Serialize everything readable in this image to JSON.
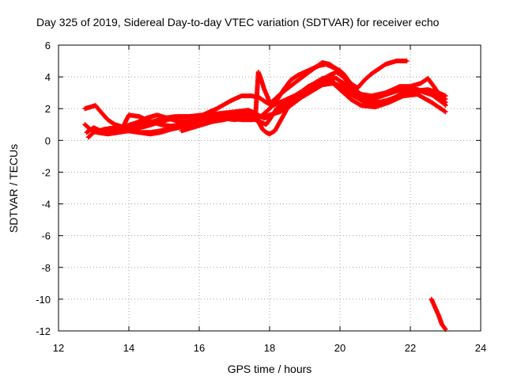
{
  "chart_data": {
    "type": "scatter",
    "title": "Day 325 of 2019, Sidereal Day-to-day VTEC variation (SDTVAR) for receiver echo",
    "xlabel": "GPS time / hours",
    "ylabel": "SDTVAR / TECUs",
    "xlim": [
      12,
      24
    ],
    "ylim": [
      -12,
      6
    ],
    "xticks": [
      12,
      14,
      16,
      18,
      20,
      22,
      24
    ],
    "yticks": [
      -12,
      -10,
      -8,
      -6,
      -4,
      -2,
      0,
      2,
      4,
      6
    ],
    "xtick_labels": [
      "12",
      "14",
      "16",
      "18",
      "20",
      "22",
      "24"
    ],
    "ytick_labels": [
      "-12",
      "-10",
      "-8",
      "-6",
      "-4",
      "-2",
      "0",
      "2",
      "4",
      "6"
    ],
    "grid": true,
    "legend": "none",
    "marker": "+",
    "color": "#ff0000",
    "series": [
      {
        "name": "track-1",
        "points": [
          [
            12.75,
            2.0
          ],
          [
            12.9,
            2.1
          ],
          [
            13.05,
            2.2
          ],
          [
            13.2,
            1.8
          ],
          [
            13.4,
            1.3
          ],
          [
            13.6,
            1.0
          ],
          [
            13.9,
            0.8
          ],
          [
            14.2,
            0.75
          ],
          [
            14.5,
            0.9
          ],
          [
            14.8,
            1.1
          ],
          [
            15.1,
            1.3
          ],
          [
            15.4,
            1.5
          ],
          [
            15.8,
            1.5
          ],
          [
            16.2,
            1.6
          ],
          [
            16.6,
            1.7
          ],
          [
            17.0,
            1.8
          ],
          [
            17.4,
            1.9
          ],
          [
            17.6,
            1.7
          ],
          [
            17.75,
            1.5
          ],
          [
            17.85,
            1.4
          ],
          [
            18.0,
            1.5
          ],
          [
            18.3,
            2.0
          ],
          [
            18.6,
            2.5
          ],
          [
            18.9,
            3.0
          ],
          [
            19.2,
            3.5
          ],
          [
            19.5,
            3.9
          ],
          [
            19.7,
            4.0
          ],
          [
            19.9,
            3.9
          ],
          [
            20.1,
            3.6
          ],
          [
            20.3,
            3.2
          ],
          [
            20.6,
            2.6
          ],
          [
            20.9,
            2.3
          ],
          [
            21.3,
            2.5
          ],
          [
            21.7,
            2.8
          ],
          [
            22.1,
            3.1
          ],
          [
            22.5,
            3.2
          ],
          [
            22.8,
            3.0
          ],
          [
            23.0,
            2.8
          ]
        ]
      },
      {
        "name": "track-2",
        "points": [
          [
            12.75,
            1.0
          ],
          [
            12.9,
            0.7
          ],
          [
            13.1,
            0.5
          ],
          [
            13.4,
            0.4
          ],
          [
            13.7,
            0.5
          ],
          [
            14.0,
            0.6
          ],
          [
            14.3,
            0.5
          ],
          [
            14.6,
            0.4
          ],
          [
            14.9,
            0.5
          ],
          [
            15.2,
            0.7
          ],
          [
            15.6,
            0.9
          ],
          [
            16.0,
            1.2
          ],
          [
            16.4,
            1.5
          ],
          [
            16.8,
            1.7
          ],
          [
            17.2,
            1.8
          ],
          [
            17.5,
            1.6
          ],
          [
            17.65,
            1.3
          ],
          [
            17.8,
            0.7
          ],
          [
            17.9,
            0.5
          ],
          [
            18.0,
            0.4
          ],
          [
            18.15,
            0.6
          ],
          [
            18.3,
            1.2
          ],
          [
            18.5,
            2.0
          ],
          [
            18.8,
            2.7
          ],
          [
            19.1,
            3.2
          ],
          [
            19.4,
            3.6
          ],
          [
            19.6,
            3.8
          ],
          [
            19.8,
            3.6
          ],
          [
            20.0,
            3.2
          ],
          [
            20.3,
            2.6
          ],
          [
            20.6,
            2.2
          ],
          [
            21.0,
            2.1
          ],
          [
            21.4,
            2.4
          ],
          [
            21.8,
            2.8
          ],
          [
            22.2,
            2.9
          ],
          [
            22.6,
            2.4
          ],
          [
            23.0,
            1.8
          ]
        ]
      },
      {
        "name": "track-3",
        "points": [
          [
            12.85,
            0.2
          ],
          [
            13.0,
            0.5
          ],
          [
            13.3,
            0.7
          ],
          [
            13.6,
            0.8
          ],
          [
            13.9,
            0.9
          ],
          [
            14.2,
            1.1
          ],
          [
            14.5,
            1.4
          ],
          [
            14.8,
            1.6
          ],
          [
            15.1,
            1.4
          ],
          [
            15.4,
            1.2
          ],
          [
            15.7,
            1.2
          ],
          [
            16.0,
            1.3
          ],
          [
            16.3,
            1.4
          ],
          [
            16.6,
            1.5
          ],
          [
            16.9,
            1.4
          ],
          [
            17.2,
            1.3
          ],
          [
            17.5,
            1.3
          ],
          [
            17.7,
            1.4
          ],
          [
            17.9,
            1.8
          ],
          [
            18.1,
            2.2
          ],
          [
            18.4,
            2.5
          ],
          [
            18.7,
            2.8
          ],
          [
            19.0,
            3.2
          ],
          [
            19.3,
            3.6
          ],
          [
            19.5,
            3.8
          ],
          [
            19.7,
            3.9
          ],
          [
            19.9,
            3.5
          ],
          [
            20.2,
            3.0
          ],
          [
            20.5,
            2.7
          ],
          [
            20.8,
            2.5
          ],
          [
            21.2,
            2.4
          ],
          [
            21.6,
            2.7
          ],
          [
            22.0,
            3.0
          ],
          [
            22.3,
            3.1
          ],
          [
            22.7,
            2.8
          ],
          [
            23.0,
            2.4
          ]
        ]
      },
      {
        "name": "track-4",
        "points": [
          [
            12.8,
            0.5
          ],
          [
            13.0,
            0.8
          ],
          [
            13.2,
            0.6
          ],
          [
            13.5,
            0.6
          ],
          [
            13.8,
            0.7
          ],
          [
            14.0,
            1.6
          ],
          [
            14.3,
            1.5
          ],
          [
            14.6,
            1.2
          ],
          [
            14.9,
            1.0
          ],
          [
            15.2,
            0.9
          ],
          [
            15.5,
            1.0
          ],
          [
            15.8,
            1.2
          ],
          [
            16.1,
            1.4
          ],
          [
            16.4,
            1.5
          ],
          [
            16.7,
            1.4
          ],
          [
            17.0,
            1.3
          ],
          [
            17.3,
            1.4
          ],
          [
            17.6,
            1.3
          ],
          [
            17.8,
            1.1
          ],
          [
            17.9,
            1.0
          ],
          [
            18.0,
            1.3
          ],
          [
            18.2,
            2.0
          ],
          [
            18.5,
            2.4
          ],
          [
            18.8,
            2.9
          ],
          [
            19.1,
            3.4
          ],
          [
            19.4,
            3.7
          ],
          [
            19.7,
            4.1
          ],
          [
            19.9,
            4.3
          ],
          [
            20.1,
            4.0
          ],
          [
            20.3,
            3.4
          ],
          [
            20.6,
            2.9
          ],
          [
            20.9,
            2.8
          ],
          [
            21.3,
            3.0
          ],
          [
            21.7,
            3.4
          ],
          [
            22.0,
            3.4
          ],
          [
            22.3,
            3.6
          ],
          [
            22.5,
            3.9
          ],
          [
            22.7,
            3.3
          ],
          [
            23.0,
            2.2
          ]
        ]
      },
      {
        "name": "track-5",
        "points": [
          [
            15.5,
            0.6
          ],
          [
            15.8,
            0.8
          ],
          [
            16.1,
            1.0
          ],
          [
            16.4,
            1.2
          ],
          [
            16.7,
            1.5
          ],
          [
            17.0,
            1.6
          ],
          [
            17.3,
            1.7
          ],
          [
            17.6,
            1.6
          ],
          [
            17.68,
            4.3
          ],
          [
            17.75,
            3.9
          ],
          [
            17.85,
            3.2
          ],
          [
            17.95,
            2.7
          ],
          [
            18.0,
            2.3
          ],
          [
            18.2,
            2.5
          ],
          [
            18.4,
            3.2
          ],
          [
            18.6,
            3.8
          ],
          [
            18.8,
            4.1
          ],
          [
            19.0,
            4.3
          ],
          [
            19.2,
            4.5
          ],
          [
            19.4,
            4.7
          ],
          [
            19.6,
            4.8
          ],
          [
            19.8,
            4.6
          ],
          [
            20.0,
            4.4
          ],
          [
            20.2,
            3.8
          ],
          [
            20.4,
            3.2
          ],
          [
            20.6,
            2.9
          ],
          [
            20.9,
            2.6
          ],
          [
            21.2,
            2.8
          ],
          [
            21.6,
            3.1
          ],
          [
            22.0,
            3.3
          ],
          [
            22.4,
            3.1
          ],
          [
            22.7,
            2.9
          ],
          [
            23.0,
            2.6
          ]
        ]
      },
      {
        "name": "track-6",
        "points": [
          [
            13.5,
            0.6
          ],
          [
            13.9,
            0.8
          ],
          [
            14.3,
            1.0
          ],
          [
            14.7,
            1.2
          ],
          [
            15.0,
            1.4
          ],
          [
            15.3,
            1.5
          ],
          [
            15.7,
            1.5
          ],
          [
            16.1,
            1.6
          ],
          [
            16.5,
            2.0
          ],
          [
            16.9,
            2.5
          ],
          [
            17.2,
            2.8
          ],
          [
            17.5,
            2.8
          ],
          [
            17.7,
            2.7
          ],
          [
            17.9,
            2.4
          ],
          [
            18.0,
            2.3
          ],
          [
            18.3,
            2.9
          ],
          [
            18.7,
            3.6
          ],
          [
            19.0,
            4.1
          ],
          [
            19.3,
            4.6
          ],
          [
            19.5,
            4.9
          ],
          [
            19.7,
            4.8
          ],
          [
            19.9,
            4.5
          ],
          [
            20.1,
            4.2
          ],
          [
            20.3,
            3.6
          ],
          [
            20.5,
            3.3
          ],
          [
            20.7,
            3.8
          ],
          [
            20.9,
            4.2
          ],
          [
            21.1,
            4.5
          ],
          [
            21.3,
            4.8
          ],
          [
            21.6,
            5.0
          ],
          [
            21.9,
            5.0
          ]
        ]
      },
      {
        "name": "track-7",
        "points": [
          [
            14.0,
            0.6
          ],
          [
            14.3,
            0.5
          ],
          [
            14.6,
            0.5
          ],
          [
            14.9,
            0.6
          ],
          [
            15.2,
            0.8
          ],
          [
            15.5,
            1.0
          ],
          [
            15.8,
            1.2
          ],
          [
            16.1,
            1.3
          ],
          [
            16.4,
            1.2
          ],
          [
            16.7,
            1.3
          ],
          [
            17.0,
            1.5
          ],
          [
            17.3,
            1.6
          ],
          [
            17.6,
            1.6
          ],
          [
            17.8,
            1.5
          ],
          [
            18.0,
            1.6
          ],
          [
            18.3,
            1.8
          ],
          [
            18.6,
            2.2
          ],
          [
            18.9,
            2.7
          ],
          [
            19.2,
            3.1
          ],
          [
            19.5,
            3.5
          ],
          [
            19.8,
            3.6
          ],
          [
            20.1,
            3.4
          ],
          [
            20.4,
            2.8
          ],
          [
            20.7,
            2.4
          ],
          [
            21.0,
            2.3
          ],
          [
            21.4,
            2.5
          ],
          [
            21.8,
            3.0
          ],
          [
            22.2,
            3.2
          ],
          [
            22.6,
            2.9
          ],
          [
            22.9,
            2.4
          ]
        ]
      },
      {
        "name": "track-8",
        "points": [
          [
            22.6,
            -10.0
          ],
          [
            22.7,
            -10.5
          ],
          [
            22.8,
            -11.0
          ],
          [
            22.9,
            -11.6
          ],
          [
            23.0,
            -11.9
          ]
        ]
      }
    ]
  }
}
